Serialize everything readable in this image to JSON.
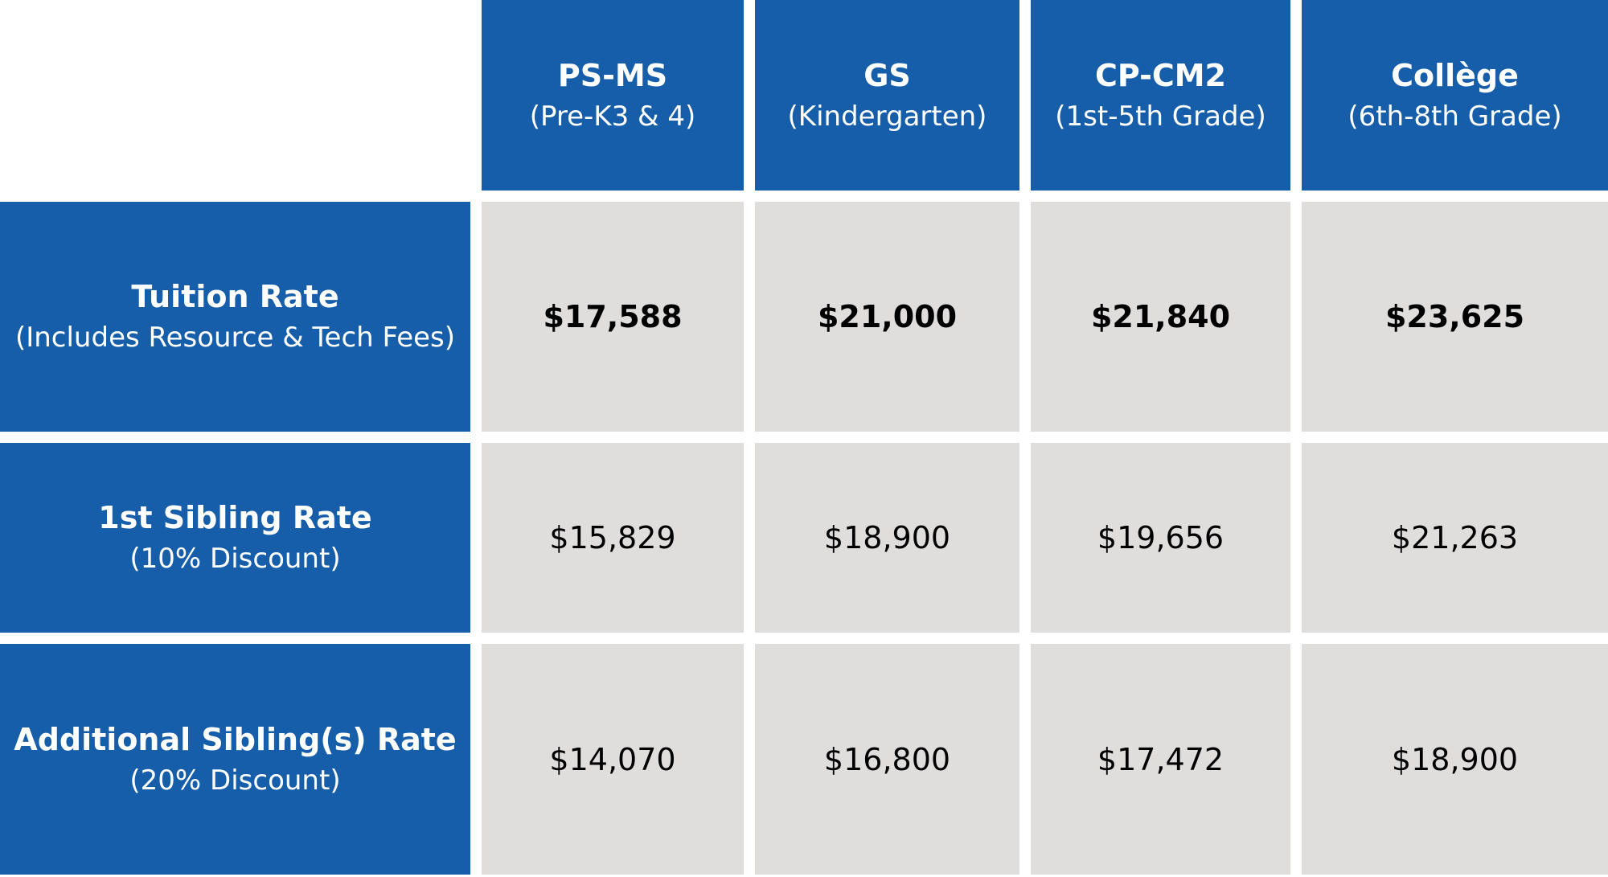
{
  "columns": [
    {
      "title": "PS-MS",
      "subtitle": "(Pre-K3 & 4)"
    },
    {
      "title": "GS",
      "subtitle": "(Kindergarten)"
    },
    {
      "title": "CP-CM2",
      "subtitle": "(1st-5th Grade)"
    },
    {
      "title": "Collège",
      "subtitle": "(6th-8th Grade)"
    }
  ],
  "rows": [
    {
      "title": "Tuition Rate",
      "subtitle": "(Includes Resource & Tech Fees)",
      "values": [
        "$17,588",
        "$21,000",
        "$21,840",
        "$23,625"
      ]
    },
    {
      "title": "1st Sibling Rate",
      "subtitle": "(10% Discount)",
      "values": [
        "$15,829",
        "$18,900",
        "$19,656",
        "$21,263"
      ]
    },
    {
      "title": "Additional Sibling(s) Rate",
      "subtitle": "(20% Discount)",
      "values": [
        "$14,070",
        "$16,800",
        "$17,472",
        "$18,900"
      ]
    }
  ],
  "colors": {
    "header_blue": "#165ea9",
    "cell_gray": "#e0dddd",
    "background": "#ffffff"
  }
}
